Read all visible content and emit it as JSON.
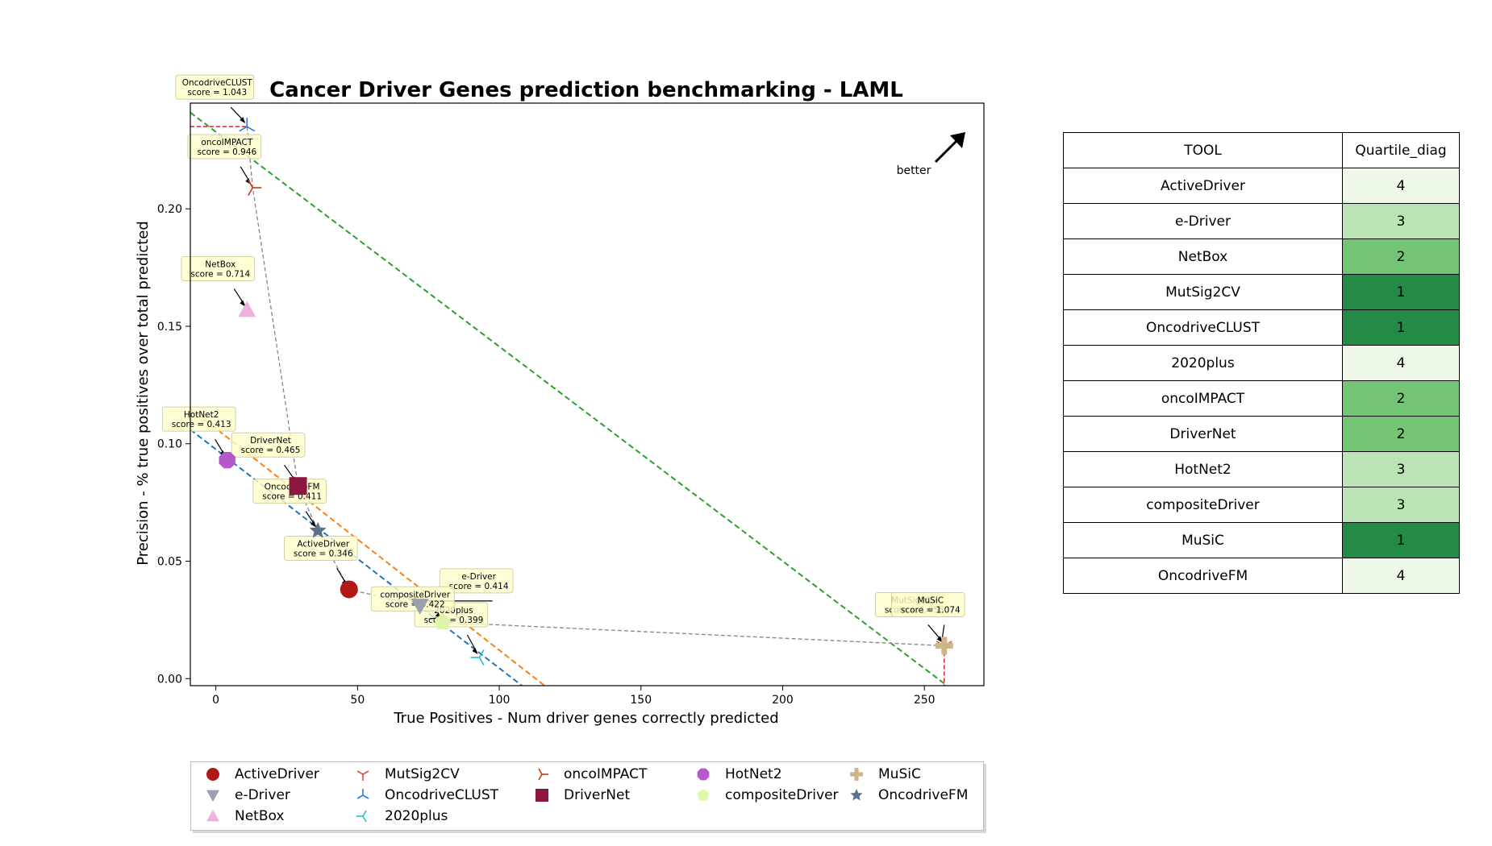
{
  "chart_data": {
    "type": "scatter",
    "title": "Cancer Driver Genes prediction benchmarking - LAML",
    "xlabel": "True Positives - Num driver genes correctly predicted",
    "ylabel": "Precision - % true positives over total predicted",
    "xlim": [
      -9,
      271
    ],
    "ylim": [
      -0.003,
      0.245
    ],
    "xticks": [
      0,
      50,
      100,
      150,
      200,
      250
    ],
    "yticks": [
      0.0,
      0.05,
      0.1,
      0.15,
      0.2
    ],
    "xtick_labels": [
      "0",
      "50",
      "100",
      "150",
      "200",
      "250"
    ],
    "ytick_labels": [
      "0.00",
      "0.05",
      "0.10",
      "0.15",
      "0.20"
    ],
    "better_label": "better",
    "grid": false,
    "legend_placement": "below",
    "series": [
      {
        "name": "ActiveDriver",
        "x": 47,
        "y": 0.038,
        "marker": "circle",
        "color": "#b01818",
        "annotation": "ActiveDriver\nscore = 0.346"
      },
      {
        "name": "e-Driver",
        "x": 72,
        "y": 0.031,
        "marker": "triangle-down",
        "color": "#9aa0b0",
        "annotation": "e-Driver\nscore = 0.414"
      },
      {
        "name": "NetBox",
        "x": 11,
        "y": 0.157,
        "marker": "triangle-up",
        "color": "#eeb0dc",
        "annotation": "NetBox\nscore = 0.714"
      },
      {
        "name": "MutSig2CV",
        "x": 257,
        "y": 0.014,
        "marker": "tri-down",
        "color": "#e74c3c",
        "annotation": "MutSig2CV\nscore = 1.056"
      },
      {
        "name": "OncodriveCLUST",
        "x": 11,
        "y": 0.235,
        "marker": "tri-up",
        "color": "#2a7ad8",
        "annotation": "OncodriveCLUST\nscore = 1.043"
      },
      {
        "name": "2020plus",
        "x": 93,
        "y": 0.009,
        "marker": "tri-left",
        "color": "#1fc0d0",
        "annotation": "2020plus\nscore = 0.399"
      },
      {
        "name": "oncoIMPACT",
        "x": 13,
        "y": 0.209,
        "marker": "tri-right",
        "color": "#c43a1a",
        "annotation": "oncoIMPACT\nscore = 0.946"
      },
      {
        "name": "DriverNet",
        "x": 29,
        "y": 0.082,
        "marker": "square",
        "color": "#8b1740",
        "annotation": "DriverNet\nscore = 0.465"
      },
      {
        "name": "HotNet2",
        "x": 4,
        "y": 0.093,
        "marker": "octagon",
        "color": "#b458cc",
        "annotation": "HotNet2\nscore = 0.413"
      },
      {
        "name": "compositeDriver",
        "x": 80,
        "y": 0.024,
        "marker": "pentagon",
        "color": "#dcf7a8",
        "annotation": "compositeDriver\nscore = 0.422"
      },
      {
        "name": "MuSiC",
        "x": 257,
        "y": 0.014,
        "marker": "plus",
        "color": "#cfb48c",
        "annotation": "MuSiC\nscore = 1.074"
      },
      {
        "name": "OncodriveFM",
        "x": 36,
        "y": 0.063,
        "marker": "star",
        "color": "#587089",
        "annotation": "OncodriveFM\nscore = 0.411"
      }
    ],
    "pareto_front": [
      [
        11,
        0.235
      ],
      [
        13,
        0.209
      ],
      [
        29,
        0.082
      ],
      [
        36,
        0.063
      ],
      [
        47,
        0.038
      ],
      [
        72,
        0.031
      ],
      [
        80,
        0.024
      ],
      [
        257,
        0.014
      ]
    ],
    "quartile_lines": [
      {
        "color": "#1f77b4",
        "x": [
          -9,
          108
        ],
        "y": [
          0.106,
          -0.003
        ]
      },
      {
        "color": "#ff7f0e",
        "x": [
          -9,
          116
        ],
        "y": [
          0.115,
          -0.003
        ]
      },
      {
        "color": "#2ca02c",
        "x": [
          -9,
          258
        ],
        "y": [
          0.241,
          -0.003
        ]
      }
    ]
  },
  "table": {
    "headers": [
      "TOOL",
      "Quartile_diag"
    ],
    "rows": [
      {
        "tool": "ActiveDriver",
        "q": "4",
        "color": "#edf8e9"
      },
      {
        "tool": "e-Driver",
        "q": "3",
        "color": "#bae4b3"
      },
      {
        "tool": "NetBox",
        "q": "2",
        "color": "#74c476"
      },
      {
        "tool": "MutSig2CV",
        "q": "1",
        "color": "#238b45"
      },
      {
        "tool": "OncodriveCLUST",
        "q": "1",
        "color": "#238b45"
      },
      {
        "tool": "2020plus",
        "q": "4",
        "color": "#edf8e9"
      },
      {
        "tool": "oncoIMPACT",
        "q": "2",
        "color": "#74c476"
      },
      {
        "tool": "DriverNet",
        "q": "2",
        "color": "#74c476"
      },
      {
        "tool": "HotNet2",
        "q": "3",
        "color": "#bae4b3"
      },
      {
        "tool": "compositeDriver",
        "q": "3",
        "color": "#bae4b3"
      },
      {
        "tool": "MuSiC",
        "q": "1",
        "color": "#238b45"
      },
      {
        "tool": "OncodriveFM",
        "q": "4",
        "color": "#edf8e9"
      }
    ]
  }
}
